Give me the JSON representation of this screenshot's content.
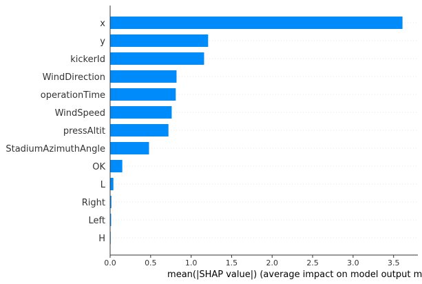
{
  "chart_data": {
    "type": "bar",
    "orientation": "horizontal",
    "categories": [
      "x",
      "y",
      "kickerId",
      "WindDirection",
      "operationTime",
      "WindSpeed",
      "pressAltit",
      "StadiumAzimuthAngle",
      "OK",
      "L",
      "Right",
      "Left",
      "H"
    ],
    "values": [
      3.61,
      1.21,
      1.16,
      0.82,
      0.81,
      0.76,
      0.72,
      0.48,
      0.15,
      0.04,
      0.015,
      0.012,
      0.004
    ],
    "xlabel": "mean(|SHAP value|) (average impact on model output magnitude)",
    "ylabel": "",
    "title": "",
    "xlim": [
      0,
      3.8
    ],
    "xticks": [
      "0.0",
      "0.5",
      "1.0",
      "1.5",
      "2.0",
      "2.5",
      "3.0",
      "3.5"
    ],
    "grid": false,
    "bar_color": "#008bfb"
  }
}
